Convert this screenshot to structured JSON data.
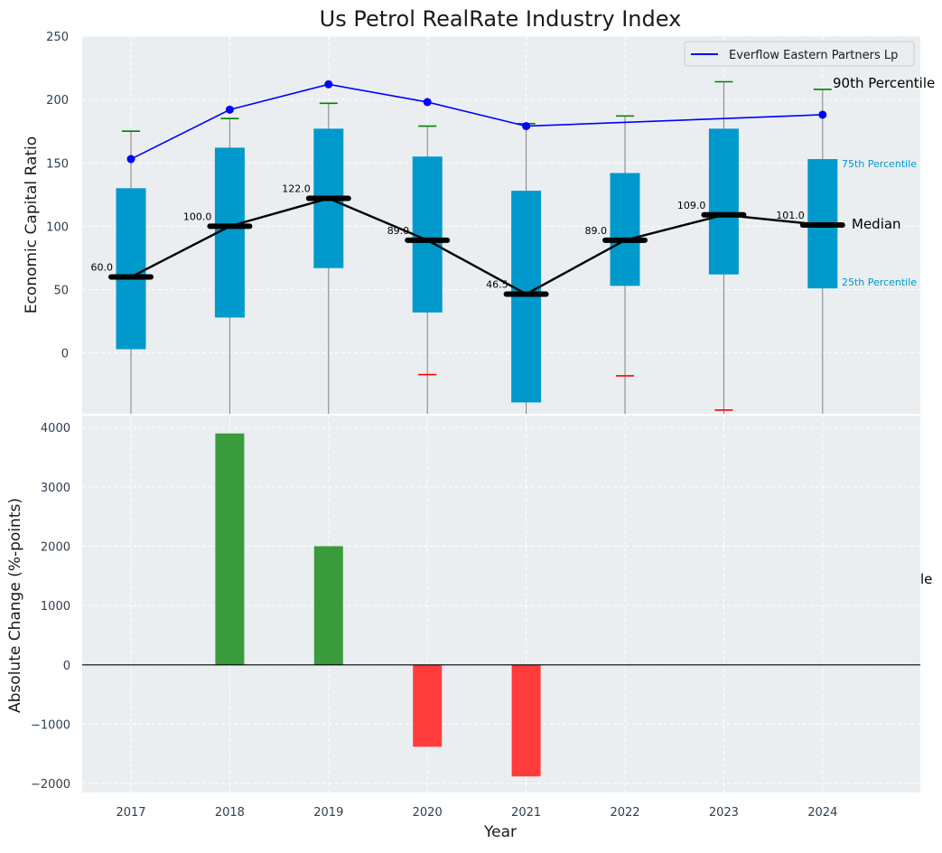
{
  "chart_data": [
    {
      "type": "box",
      "title": "Us Petrol RealRate Industry Index",
      "xlabel": "",
      "ylabel": "Economic Capital Ratio",
      "ylim": [
        -48,
        250
      ],
      "yticks": [
        0,
        50,
        100,
        150,
        200,
        250
      ],
      "grid": true,
      "categories": [
        "2017",
        "2018",
        "2019",
        "2020",
        "2021",
        "2022",
        "2023",
        "2024"
      ],
      "boxes": [
        {
          "q1": 3,
          "median": 60,
          "q3": 130,
          "p10": null,
          "p90": 175,
          "min": null
        },
        {
          "q1": 28,
          "median": 100,
          "q3": 162,
          "p10": null,
          "p90": 185,
          "min": null
        },
        {
          "q1": 67,
          "median": 122,
          "q3": 177,
          "p10": null,
          "p90": 197,
          "min": null
        },
        {
          "q1": 32,
          "median": 89,
          "q3": 155,
          "p10": -17,
          "p90": 179,
          "min": null
        },
        {
          "q1": -39,
          "median": 46.5,
          "q3": 128,
          "p10": null,
          "p90": 181,
          "min": null
        },
        {
          "q1": 53,
          "median": 89,
          "q3": 142,
          "p10": -18,
          "p90": 187,
          "min": null
        },
        {
          "q1": 62,
          "median": 109,
          "q3": 177,
          "p10": -45,
          "p90": 214,
          "min": null
        },
        {
          "q1": 51,
          "median": 101,
          "q3": 153,
          "p10": null,
          "p90": 208,
          "min": null
        }
      ],
      "median_labels": [
        "60.0",
        "100.0",
        "122.0",
        "89.0",
        "46.5",
        "89.0",
        "109.0",
        "101.0"
      ],
      "company_series": {
        "name": "Everflow Eastern Partners Lp",
        "points": [
          {
            "x": "2017",
            "y": 153
          },
          {
            "x": "2018",
            "y": 192
          },
          {
            "x": "2019",
            "y": 212
          },
          {
            "x": "2020",
            "y": 198
          },
          {
            "x": "2021",
            "y": 179
          },
          {
            "x": "2024",
            "y": 188
          }
        ]
      },
      "legend": {
        "position": "top-right",
        "entries": [
          "Everflow Eastern Partners Lp"
        ]
      },
      "annotations": {
        "p90": "90th Percentile",
        "p75": "75th Percentile",
        "median": "Median",
        "p25": "25th Percentile"
      },
      "colors": {
        "box": "#0099cc",
        "median": "#000000",
        "company": "#0000ff",
        "whisker_top": "#008000",
        "whisker_bottom": "#ff0000",
        "whisker_line": "#808080",
        "panel_bg": "#eaeef0"
      }
    },
    {
      "type": "bar",
      "title": "",
      "xlabel": "Year",
      "ylabel": "Absolute Change (%-points)",
      "ylim": [
        -2150,
        4200
      ],
      "yticks": [
        -2000,
        -1000,
        0,
        1000,
        2000,
        3000,
        4000
      ],
      "grid": true,
      "categories": [
        "2017",
        "2018",
        "2019",
        "2020",
        "2021",
        "2022",
        "2023",
        "2024"
      ],
      "values": [
        0,
        3900,
        2000,
        -1380,
        -1880,
        0,
        0,
        0
      ],
      "clipped_annotation": "le",
      "colors": {
        "positive": "#3a9b3c",
        "negative": "#ff3b3b",
        "zero_line": "#000000",
        "panel_bg": "#eaeef0"
      }
    }
  ],
  "axis_tick_labels": {
    "top_y": [
      "0",
      "50",
      "100",
      "150",
      "200",
      "250"
    ],
    "bottom_y": [
      "−2000",
      "−1000",
      "0",
      "1000",
      "2000",
      "3000",
      "4000"
    ],
    "x": [
      "2017",
      "2018",
      "2019",
      "2020",
      "2021",
      "2022",
      "2023",
      "2024"
    ]
  }
}
